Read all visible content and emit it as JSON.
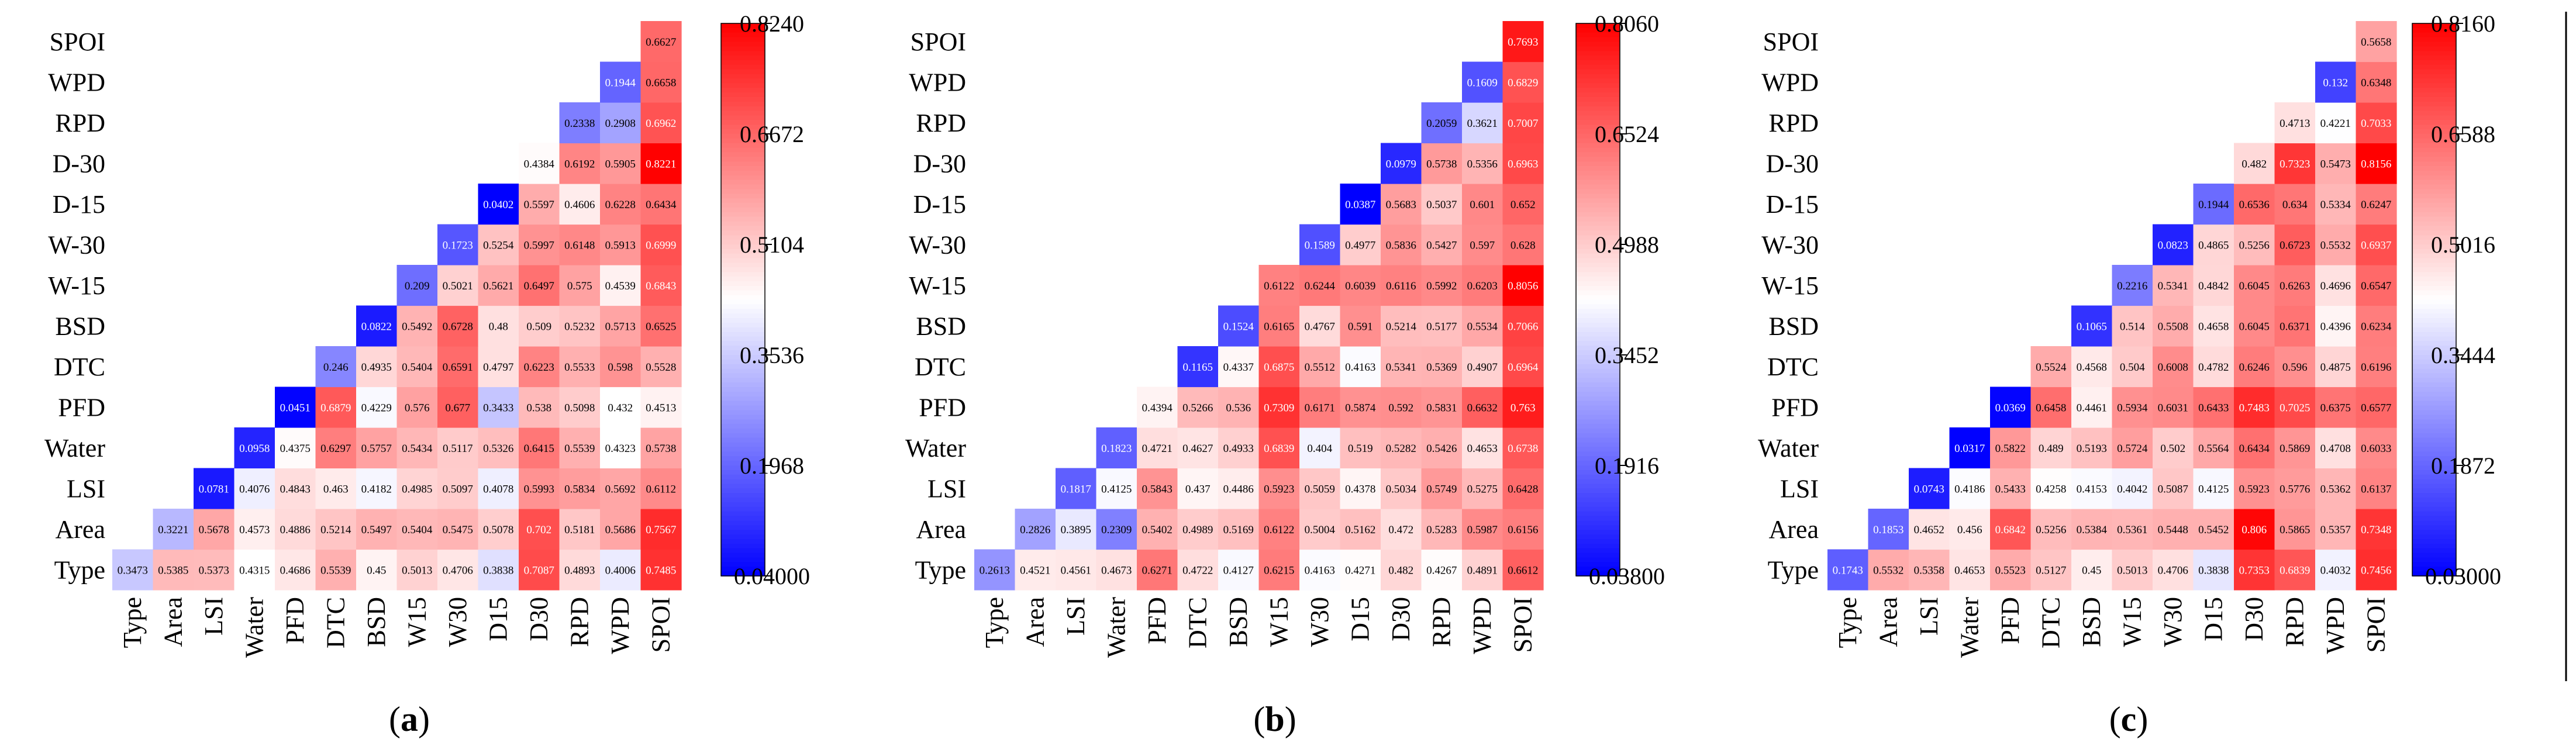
{
  "colors": {
    "low": "#0000ff",
    "mid": "#ffffff",
    "high": "#ff0000"
  },
  "chart_data": [
    {
      "type": "heatmap",
      "panel_label": {
        "open": "(",
        "letter": "a",
        "close": ")"
      },
      "row_labels": [
        "Type",
        "Area",
        "LSI",
        "Water",
        "PFD",
        "DTC",
        "BSD",
        "W-15",
        "W-30",
        "D-15",
        "D-30",
        "RPD",
        "WPD",
        "SPOI"
      ],
      "col_labels": [
        "Type",
        "Area",
        "LSI",
        "Water",
        "PFD",
        "DTC",
        "BSD",
        "W15",
        "W30",
        "D15",
        "D30",
        "RPD",
        "WPD",
        "SPOI"
      ],
      "values": [
        [
          "0.3473",
          "0.5385",
          "0.5373",
          "0.4315",
          "0.4686",
          "0.5539",
          "0.45",
          "0.5013",
          "0.4706",
          "0.3838",
          "0.7087",
          "0.4893",
          "0.4006",
          "0.7485"
        ],
        [
          "",
          "0.3221",
          "0.5678",
          "0.4573",
          "0.4886",
          "0.5214",
          "0.5497",
          "0.5404",
          "0.5475",
          "0.5078",
          "0.702",
          "0.5181",
          "0.5686",
          "0.7567"
        ],
        [
          "",
          "",
          "0.0781",
          "0.4076",
          "0.4843",
          "0.463",
          "0.4182",
          "0.4985",
          "0.5097",
          "0.4078",
          "0.5993",
          "0.5834",
          "0.5692",
          "0.6112"
        ],
        [
          "",
          "",
          "",
          "0.0958",
          "0.4375",
          "0.6297",
          "0.5757",
          "0.5434",
          "0.5117",
          "0.5326",
          "0.6415",
          "0.5539",
          "0.4323",
          "0.5738"
        ],
        [
          "",
          "",
          "",
          "",
          "0.0451",
          "0.6879",
          "0.4229",
          "0.576",
          "0.677",
          "0.3433",
          "0.538",
          "0.5098",
          "0.432",
          "0.4513"
        ],
        [
          "",
          "",
          "",
          "",
          "",
          "0.246",
          "0.4935",
          "0.5404",
          "0.6591",
          "0.4797",
          "0.6223",
          "0.5533",
          "0.598",
          "0.5528"
        ],
        [
          "",
          "",
          "",
          "",
          "",
          "",
          "0.0822",
          "0.5492",
          "0.6728",
          "0.48",
          "0.509",
          "0.5232",
          "0.5713",
          "0.6525"
        ],
        [
          "",
          "",
          "",
          "",
          "",
          "",
          "",
          "0.209",
          "0.5021",
          "0.5621",
          "0.6497",
          "0.575",
          "0.4539",
          "0.6843"
        ],
        [
          "",
          "",
          "",
          "",
          "",
          "",
          "",
          "",
          "0.1723",
          "0.5254",
          "0.5997",
          "0.6148",
          "0.5913",
          "0.6999"
        ],
        [
          "",
          "",
          "",
          "",
          "",
          "",
          "",
          "",
          "",
          "0.0402",
          "0.5597",
          "0.4606",
          "0.6228",
          "0.6434"
        ],
        [
          "",
          "",
          "",
          "",
          "",
          "",
          "",
          "",
          "",
          "",
          "0.4384",
          "0.6192",
          "0.5905",
          "0.8221"
        ],
        [
          "",
          "",
          "",
          "",
          "",
          "",
          "",
          "",
          "",
          "",
          "",
          "0.2338",
          "0.2908",
          "0.6962"
        ],
        [
          "",
          "",
          "",
          "",
          "",
          "",
          "",
          "",
          "",
          "",
          "",
          "",
          "0.1944",
          "0.6658"
        ],
        [
          "",
          "",
          "",
          "",
          "",
          "",
          "",
          "",
          "",
          "",
          "",
          "",
          "",
          "0.6627"
        ]
      ],
      "colorbar": {
        "ticks": [
          "0.04000",
          "0.1968",
          "0.3536",
          "0.5104",
          "0.6672",
          "0.8240"
        ],
        "min": 0.04,
        "max": 0.824
      }
    },
    {
      "type": "heatmap",
      "panel_label": {
        "open": "(",
        "letter": "b",
        "close": ")"
      },
      "row_labels": [
        "Type",
        "Area",
        "LSI",
        "Water",
        "PFD",
        "DTC",
        "BSD",
        "W-15",
        "W-30",
        "D-15",
        "D-30",
        "RPD",
        "WPD",
        "SPOI"
      ],
      "col_labels": [
        "Type",
        "Area",
        "LSI",
        "Water",
        "PFD",
        "DTC",
        "BSD",
        "W15",
        "W30",
        "D15",
        "D30",
        "RPD",
        "WPD",
        "SPOI"
      ],
      "values": [
        [
          "0.2613",
          "0.4521",
          "0.4561",
          "0.4673",
          "0.6271",
          "0.4722",
          "0.4127",
          "0.6215",
          "0.4163",
          "0.4271",
          "0.482",
          "0.4267",
          "0.4891",
          "0.6612"
        ],
        [
          "",
          "0.2826",
          "0.3895",
          "0.2309",
          "0.5402",
          "0.4989",
          "0.5169",
          "0.6122",
          "0.5004",
          "0.5162",
          "0.472",
          "0.5283",
          "0.5987",
          "0.6156"
        ],
        [
          "",
          "",
          "0.1817",
          "0.4125",
          "0.5843",
          "0.437",
          "0.4486",
          "0.5923",
          "0.5059",
          "0.4378",
          "0.5034",
          "0.5749",
          "0.5275",
          "0.6428"
        ],
        [
          "",
          "",
          "",
          "0.1823",
          "0.4721",
          "0.4627",
          "0.4933",
          "0.6839",
          "0.404",
          "0.519",
          "0.5282",
          "0.5426",
          "0.4653",
          "0.6738"
        ],
        [
          "",
          "",
          "",
          "",
          "0.4394",
          "0.5266",
          "0.536",
          "0.7309",
          "0.6171",
          "0.5874",
          "0.592",
          "0.5831",
          "0.6632",
          "0.763"
        ],
        [
          "",
          "",
          "",
          "",
          "",
          "0.1165",
          "0.4337",
          "0.6875",
          "0.5512",
          "0.4163",
          "0.5341",
          "0.5369",
          "0.4907",
          "0.6964"
        ],
        [
          "",
          "",
          "",
          "",
          "",
          "",
          "0.1524",
          "0.6165",
          "0.4767",
          "0.591",
          "0.5214",
          "0.5177",
          "0.5534",
          "0.7066"
        ],
        [
          "",
          "",
          "",
          "",
          "",
          "",
          "",
          "0.6122",
          "0.6244",
          "0.6039",
          "0.6116",
          "0.5992",
          "0.6203",
          "0.8056"
        ],
        [
          "",
          "",
          "",
          "",
          "",
          "",
          "",
          "",
          "0.1589",
          "0.4977",
          "0.5836",
          "0.5427",
          "0.597",
          "0.628"
        ],
        [
          "",
          "",
          "",
          "",
          "",
          "",
          "",
          "",
          "",
          "0.0387",
          "0.5683",
          "0.5037",
          "0.601",
          "0.652"
        ],
        [
          "",
          "",
          "",
          "",
          "",
          "",
          "",
          "",
          "",
          "",
          "0.0979",
          "0.5738",
          "0.5356",
          "0.6963"
        ],
        [
          "",
          "",
          "",
          "",
          "",
          "",
          "",
          "",
          "",
          "",
          "",
          "0.2059",
          "0.3621",
          "0.7007"
        ],
        [
          "",
          "",
          "",
          "",
          "",
          "",
          "",
          "",
          "",
          "",
          "",
          "",
          "0.1609",
          "0.6829"
        ],
        [
          "",
          "",
          "",
          "",
          "",
          "",
          "",
          "",
          "",
          "",
          "",
          "",
          "",
          "0.7693"
        ]
      ],
      "colorbar": {
        "ticks": [
          "0.03800",
          "0.1916",
          "0.3452",
          "0.4988",
          "0.6524",
          "0.8060"
        ],
        "min": 0.038,
        "max": 0.806
      }
    },
    {
      "type": "heatmap",
      "panel_label": {
        "open": "(",
        "letter": "c",
        "close": ")"
      },
      "row_labels": [
        "Type",
        "Area",
        "LSI",
        "Water",
        "PFD",
        "DTC",
        "BSD",
        "W-15",
        "W-30",
        "D-15",
        "D-30",
        "RPD",
        "WPD",
        "SPOI"
      ],
      "col_labels": [
        "Type",
        "Area",
        "LSI",
        "Water",
        "PFD",
        "DTC",
        "BSD",
        "W15",
        "W30",
        "D15",
        "D30",
        "RPD",
        "WPD",
        "SPOI"
      ],
      "values": [
        [
          "0.1743",
          "0.5532",
          "0.5358",
          "0.4653",
          "0.5523",
          "0.5127",
          "0.45",
          "0.5013",
          "0.4706",
          "0.3838",
          "0.7353",
          "0.6839",
          "0.4032",
          "0.7456"
        ],
        [
          "",
          "0.1853",
          "0.4652",
          "0.456",
          "0.6842",
          "0.5256",
          "0.5384",
          "0.5361",
          "0.5448",
          "0.5452",
          "0.806",
          "0.5865",
          "0.5357",
          "0.7348"
        ],
        [
          "",
          "",
          "0.0743",
          "0.4186",
          "0.5433",
          "0.4258",
          "0.4153",
          "0.4042",
          "0.5087",
          "0.4125",
          "0.5923",
          "0.5776",
          "0.5362",
          "0.6137"
        ],
        [
          "",
          "",
          "",
          "0.0317",
          "0.5822",
          "0.489",
          "0.5193",
          "0.5724",
          "0.502",
          "0.5564",
          "0.6434",
          "0.5869",
          "0.4708",
          "0.6033"
        ],
        [
          "",
          "",
          "",
          "",
          "0.0369",
          "0.6458",
          "0.4461",
          "0.5934",
          "0.6031",
          "0.6433",
          "0.7483",
          "0.7025",
          "0.6375",
          "0.6577"
        ],
        [
          "",
          "",
          "",
          "",
          "",
          "0.5524",
          "0.4568",
          "0.504",
          "0.6008",
          "0.4782",
          "0.6246",
          "0.596",
          "0.4875",
          "0.6196"
        ],
        [
          "",
          "",
          "",
          "",
          "",
          "",
          "0.1065",
          "0.514",
          "0.5508",
          "0.4658",
          "0.6045",
          "0.6371",
          "0.4396",
          "0.6234"
        ],
        [
          "",
          "",
          "",
          "",
          "",
          "",
          "",
          "0.2216",
          "0.5341",
          "0.4842",
          "0.6045",
          "0.6263",
          "0.4696",
          "0.6547"
        ],
        [
          "",
          "",
          "",
          "",
          "",
          "",
          "",
          "",
          "0.0823",
          "0.4865",
          "0.5256",
          "0.6723",
          "0.5532",
          "0.6937"
        ],
        [
          "",
          "",
          "",
          "",
          "",
          "",
          "",
          "",
          "",
          "0.1944",
          "0.6536",
          "0.634",
          "0.5334",
          "0.6247"
        ],
        [
          "",
          "",
          "",
          "",
          "",
          "",
          "",
          "",
          "",
          "",
          "0.482",
          "0.7323",
          "0.5473",
          "0.8156"
        ],
        [
          "",
          "",
          "",
          "",
          "",
          "",
          "",
          "",
          "",
          "",
          "",
          "0.4713",
          "0.4221",
          "0.7033"
        ],
        [
          "",
          "",
          "",
          "",
          "",
          "",
          "",
          "",
          "",
          "",
          "",
          "",
          "0.132",
          "0.6348"
        ],
        [
          "",
          "",
          "",
          "",
          "",
          "",
          "",
          "",
          "",
          "",
          "",
          "",
          "",
          "0.5658"
        ]
      ],
      "colorbar": {
        "ticks": [
          "0.03000",
          "0.1872",
          "0.3444",
          "0.5016",
          "0.6588",
          "0.8160"
        ],
        "min": 0.03,
        "max": 0.816
      }
    }
  ]
}
